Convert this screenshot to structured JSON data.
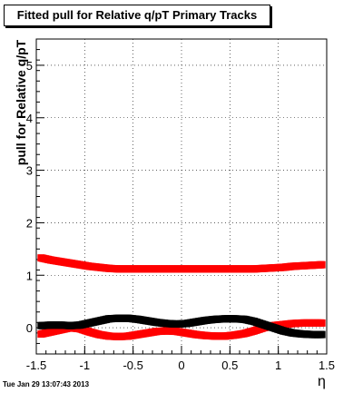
{
  "chart_data": {
    "type": "scatter",
    "title": "Fitted pull for Relative q/pT  Primary Tracks",
    "xlabel": "η",
    "ylabel": "pull for Relative q/pT",
    "xlim": [
      -1.5,
      1.5
    ],
    "ylim": [
      -0.5,
      5.5
    ],
    "xticks": [
      "-1.5",
      "-1",
      "-0.5",
      "0",
      "0.5",
      "1",
      "1.5"
    ],
    "yticks": [
      "0",
      "1",
      "2",
      "3",
      "4",
      "5"
    ],
    "grid": true,
    "series": [
      {
        "color": "#ff0000",
        "marker": "square",
        "x": [
          -1.45,
          -1.35,
          -1.25,
          -1.15,
          -1.05,
          -0.95,
          -0.85,
          -0.75,
          -0.65,
          -0.55,
          -0.45,
          -0.35,
          -0.25,
          -0.15,
          -0.05,
          0.05,
          0.15,
          0.25,
          0.35,
          0.45,
          0.55,
          0.65,
          0.75,
          0.85,
          0.95,
          1.05,
          1.15,
          1.25,
          1.35,
          1.45
        ],
        "y": [
          1.33,
          1.29,
          1.26,
          1.23,
          1.2,
          1.17,
          1.15,
          1.13,
          1.12,
          1.12,
          1.12,
          1.12,
          1.12,
          1.12,
          1.12,
          1.12,
          1.12,
          1.12,
          1.12,
          1.12,
          1.12,
          1.12,
          1.12,
          1.13,
          1.14,
          1.15,
          1.17,
          1.18,
          1.19,
          1.2
        ]
      },
      {
        "color": "#ff0000",
        "marker": "square",
        "x": [
          -1.45,
          -1.35,
          -1.25,
          -1.15,
          -1.05,
          -0.95,
          -0.85,
          -0.75,
          -0.65,
          -0.55,
          -0.45,
          -0.35,
          -0.25,
          -0.15,
          -0.05,
          0.05,
          0.15,
          0.25,
          0.35,
          0.45,
          0.55,
          0.65,
          0.75,
          0.85,
          0.95,
          1.05,
          1.15,
          1.25,
          1.35,
          1.45
        ],
        "y": [
          -0.12,
          -0.08,
          -0.04,
          0.0,
          -0.02,
          -0.08,
          -0.13,
          -0.16,
          -0.17,
          -0.16,
          -0.13,
          -0.1,
          -0.07,
          -0.06,
          -0.07,
          -0.1,
          -0.13,
          -0.15,
          -0.16,
          -0.16,
          -0.14,
          -0.11,
          -0.06,
          0.0,
          0.04,
          0.06,
          0.08,
          0.09,
          0.09,
          0.09
        ]
      },
      {
        "color": "#000000",
        "marker": "square",
        "x": [
          -1.45,
          -1.35,
          -1.25,
          -1.15,
          -1.05,
          -0.95,
          -0.85,
          -0.75,
          -0.65,
          -0.55,
          -0.45,
          -0.35,
          -0.25,
          -0.15,
          -0.05,
          0.05,
          0.15,
          0.25,
          0.35,
          0.45,
          0.55,
          0.65,
          0.75,
          0.85,
          0.95,
          1.05,
          1.15,
          1.25,
          1.35,
          1.45
        ],
        "y": [
          0.04,
          0.05,
          0.05,
          0.04,
          0.05,
          0.09,
          0.13,
          0.17,
          0.18,
          0.18,
          0.16,
          0.13,
          0.1,
          0.08,
          0.07,
          0.08,
          0.11,
          0.14,
          0.16,
          0.17,
          0.17,
          0.16,
          0.12,
          0.06,
          0.0,
          -0.06,
          -0.1,
          -0.12,
          -0.13,
          -0.13
        ]
      }
    ]
  },
  "footer": {
    "timestamp": "Tue Jan 29 13:07:43 2013"
  }
}
